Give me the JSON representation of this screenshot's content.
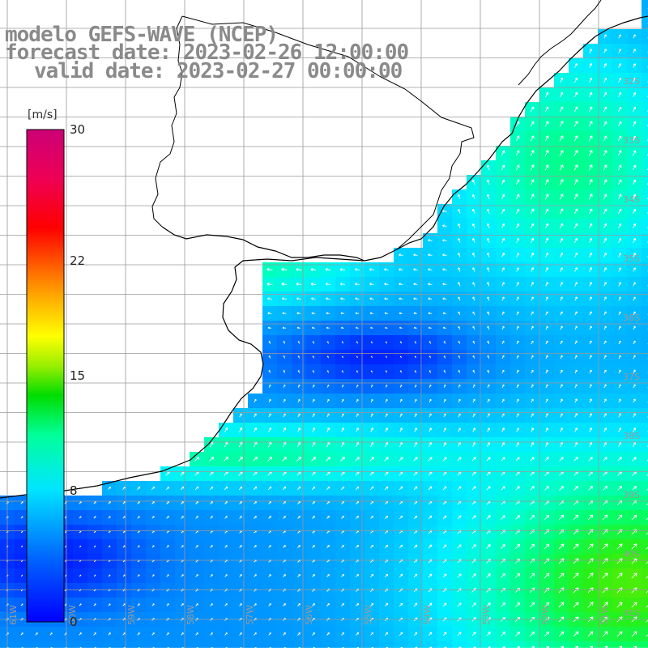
{
  "title": {
    "line1": "modelo GEFS-WAVE (NCEP)",
    "line2": "forecast date: 2023-02-26 12:00:00",
    "line3": "valid date: 2023-02-27 00:00:00"
  },
  "colorbar": {
    "unit_label": "[m/s]",
    "ticks": [
      {
        "label": "30",
        "value": 30
      },
      {
        "label": "22",
        "value": 22
      },
      {
        "label": "15",
        "value": 15
      },
      {
        "label": "8",
        "value": 8
      },
      {
        "label": "0",
        "value": 0
      }
    ]
  },
  "map": {
    "lat_labels": [
      "32S",
      "33S",
      "34S",
      "35S",
      "36S",
      "37S",
      "38S",
      "39S",
      "40S",
      "41S"
    ],
    "lon_labels": [
      "61W",
      "60W",
      "59W",
      "58W",
      "57W",
      "56W",
      "55W",
      "54W",
      "53W",
      "52W",
      "51W"
    ],
    "colors": {
      "land": "#ffffff",
      "grid": "#9a9a9a",
      "coast": "#000000",
      "arrow": "#ffffff"
    }
  }
}
